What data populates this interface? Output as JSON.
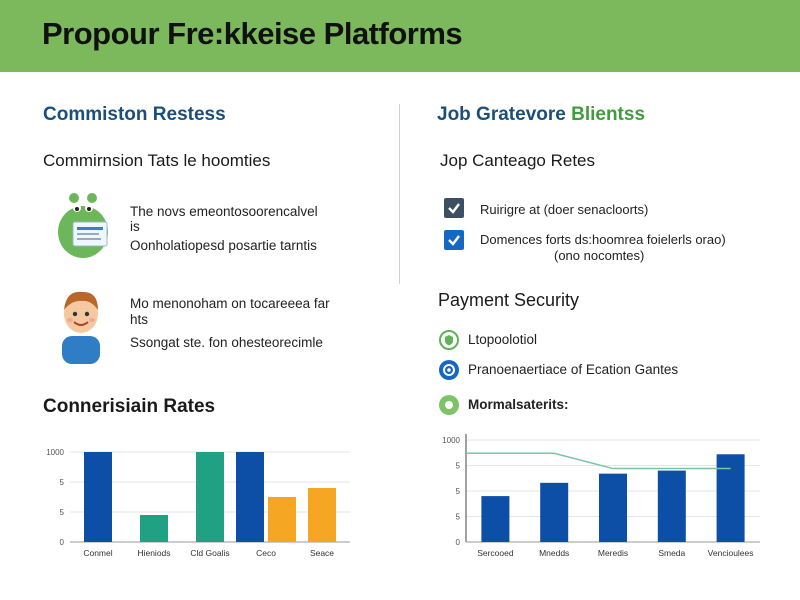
{
  "header": {
    "title": "Propour Fre:kkeise Platforms"
  },
  "left": {
    "section_title": "Commiston Restess",
    "subsection_title": "Commirnsion Tats le hoomties",
    "items": [
      {
        "icon": "monster-document-icon",
        "line1": "The novs emeontosoorencalvel",
        "line1b": "is",
        "line2": "Oonholatiopesd posartie tarntis"
      },
      {
        "icon": "boy-avatar-icon",
        "line1": "Mo menonoham on tocareeea far",
        "line1b": "hts",
        "line2": "Ssongat ste. fon ohesteorecimle"
      }
    ],
    "chart_title": "Connerisiain Rates"
  },
  "right": {
    "section_title_a": "Job Gratevore",
    "section_title_b": "Blientss",
    "subsection_title": "Jop Canteago Retes",
    "checks": [
      {
        "label": "Ruirigre at (doer senacloorts)",
        "label2": ""
      },
      {
        "label": "Domences forts ds:hoomrea foielerls orao)",
        "label2": "(ono nocomtes)"
      }
    ],
    "security_title": "Payment Security",
    "security_items": [
      {
        "icon": "shield-icon",
        "label": "Ltopoolotiol"
      },
      {
        "icon": "lock-icon",
        "label": "Pranoenaertiace of Ecation Gantes"
      },
      {
        "icon": "check-circle-icon",
        "label": "Mormalsaterits:"
      }
    ]
  },
  "colors": {
    "banner": "#7cb85c",
    "blue": "#0d4ea6",
    "green": "#5fb15a",
    "teal": "#21a184",
    "orange": "#f5a623",
    "light_green": "#7dc467"
  },
  "chart_data": [
    {
      "type": "bar",
      "title": "Connerisiain Rates",
      "yticks": [
        "1000",
        "5",
        "5",
        "0"
      ],
      "ylabel": "",
      "categories": [
        "Conmel",
        "Hieniods",
        "Cld Goalis",
        "Ceco",
        "Seace"
      ],
      "series": [
        {
          "values": [
            1000,
            0,
            0,
            1000,
            0
          ],
          "color": "#0d4ea6"
        },
        {
          "values": [
            0,
            300,
            1000,
            0,
            0
          ],
          "color": "#21a184"
        },
        {
          "values": [
            0,
            0,
            0,
            500,
            600
          ],
          "color": "#f5a623"
        }
      ],
      "ylim": [
        0,
        1000
      ]
    },
    {
      "type": "bar",
      "title": "",
      "yticks": [
        "1000",
        "5",
        "5",
        "5",
        "0"
      ],
      "categories": [
        "Sercooed",
        "Mnedds",
        "Meredis",
        "Smeda",
        "Vencioulees"
      ],
      "series": [
        {
          "values": [
            450,
            580,
            670,
            700,
            860
          ],
          "color": "#0d4ea6"
        }
      ],
      "line": {
        "values": [
          870,
          870,
          720,
          720,
          720
        ],
        "color": "#7ac4a4"
      },
      "ylim": [
        0,
        1000
      ]
    }
  ]
}
